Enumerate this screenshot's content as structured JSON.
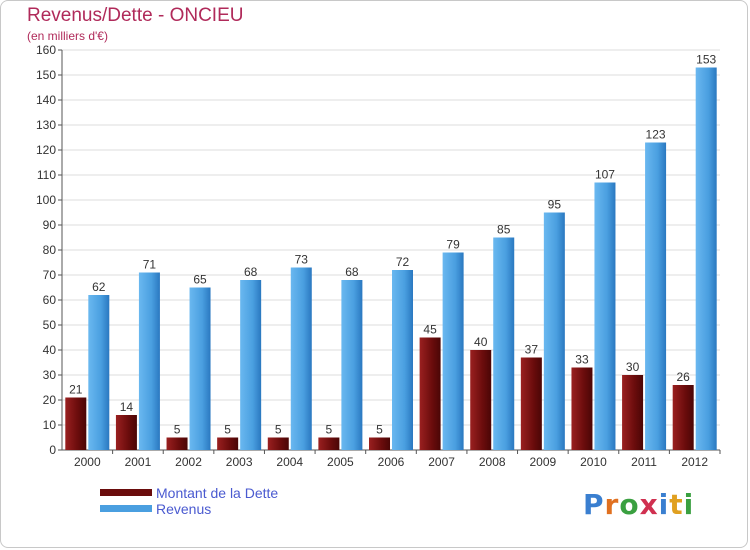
{
  "chart_data": {
    "type": "bar",
    "title": "Revenus/Dette - ONCIEU",
    "subtitle": "(en milliers d'€)",
    "categories": [
      "2000",
      "2001",
      "2002",
      "2003",
      "2004",
      "2005",
      "2006",
      "2007",
      "2008",
      "2009",
      "2010",
      "2011",
      "2012"
    ],
    "series": [
      {
        "name": "Montant de la Dette",
        "color": "#7a1010",
        "values": [
          21,
          14,
          5,
          5,
          5,
          5,
          5,
          45,
          40,
          37,
          33,
          30,
          26
        ]
      },
      {
        "name": "Revenus",
        "color": "#4a9fe0",
        "values": [
          62,
          71,
          65,
          68,
          73,
          68,
          72,
          79,
          85,
          95,
          107,
          123,
          153
        ]
      }
    ],
    "ylim": [
      0,
      160
    ],
    "yticks": [
      0,
      10,
      20,
      30,
      40,
      50,
      60,
      70,
      80,
      90,
      100,
      110,
      120,
      130,
      140,
      150,
      160
    ],
    "grid": true,
    "legend": "bottom-left"
  },
  "logo": {
    "text": "Proxiti",
    "letters": [
      "P",
      "r",
      "o",
      "x",
      "i",
      "t",
      "i"
    ],
    "colors": [
      "#3a7fd0",
      "#e07020",
      "#3aa040",
      "#d03050",
      "#3a7fd0",
      "#e0a020",
      "#3aa040"
    ]
  }
}
